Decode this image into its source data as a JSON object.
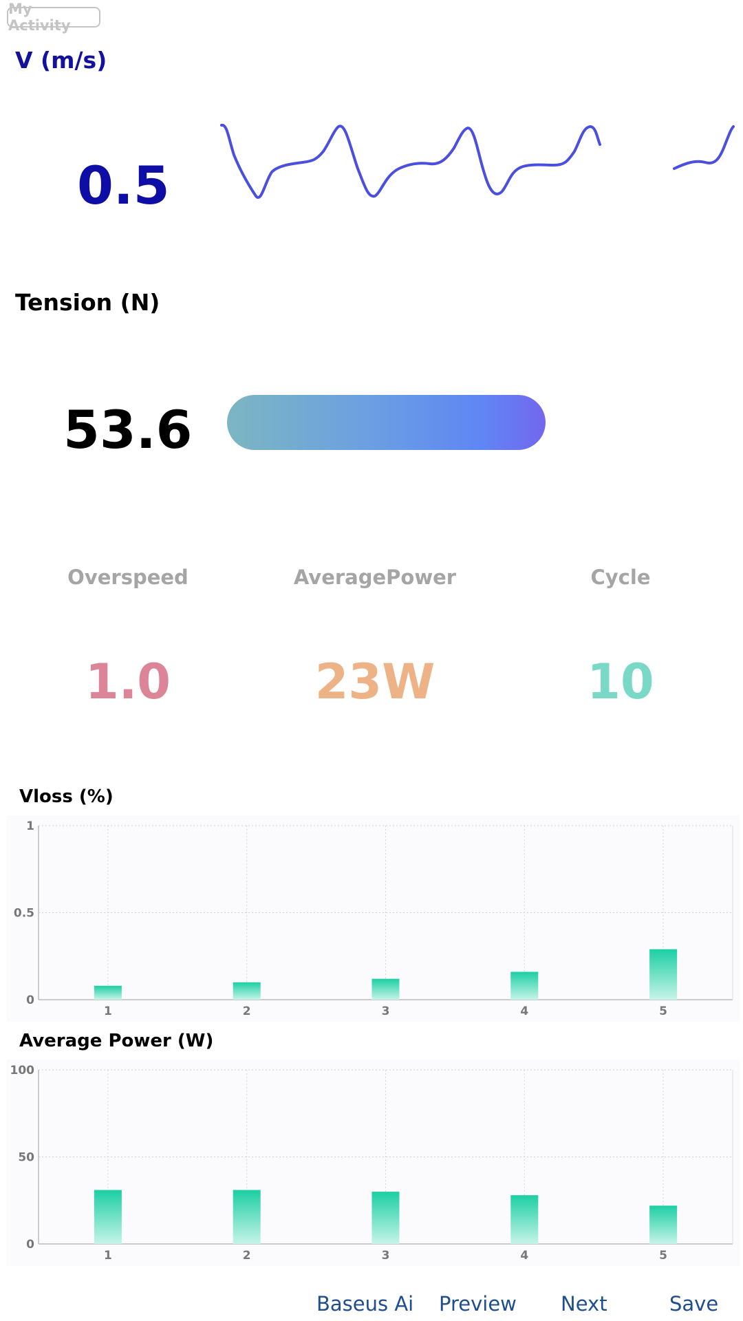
{
  "header": {
    "badge_label": "My Activity"
  },
  "velocity": {
    "title": "V (m/s)",
    "value": "0.5",
    "line_color": "#4a4fe0"
  },
  "tension": {
    "title": "Tension (N)",
    "value": "53.6"
  },
  "stats": [
    {
      "label": "Overspeed",
      "value": "1.0",
      "color": "#dc8599"
    },
    {
      "label": "AveragePower",
      "value": "23W",
      "color": "#edb386"
    },
    {
      "label": "Cycle",
      "value": "10",
      "color": "#7ad9c6"
    }
  ],
  "chart_data": [
    {
      "type": "bar",
      "title": "Vloss (%)",
      "categories": [
        "1",
        "2",
        "3",
        "4",
        "5"
      ],
      "values": [
        0.08,
        0.1,
        0.12,
        0.16,
        0.29
      ],
      "ylim": [
        0,
        1
      ],
      "yticks": [
        "0",
        "0.5",
        "1"
      ],
      "grid": true,
      "bar_color_top": "#1ccfa3",
      "bar_color_bottom": "#c6f4e8"
    },
    {
      "type": "bar",
      "title": "Average Power (W)",
      "categories": [
        "1",
        "2",
        "3",
        "4",
        "5"
      ],
      "values": [
        31,
        31,
        30,
        28,
        22
      ],
      "ylim": [
        0,
        100
      ],
      "yticks": [
        "0",
        "50",
        "100"
      ],
      "grid": true,
      "bar_color_top": "#1ccfa3",
      "bar_color_bottom": "#c6f4e8"
    }
  ],
  "footer": {
    "ai_label": "Baseus Ai",
    "preview_label": "Preview",
    "next_label": "Next",
    "save_label": "Save"
  }
}
